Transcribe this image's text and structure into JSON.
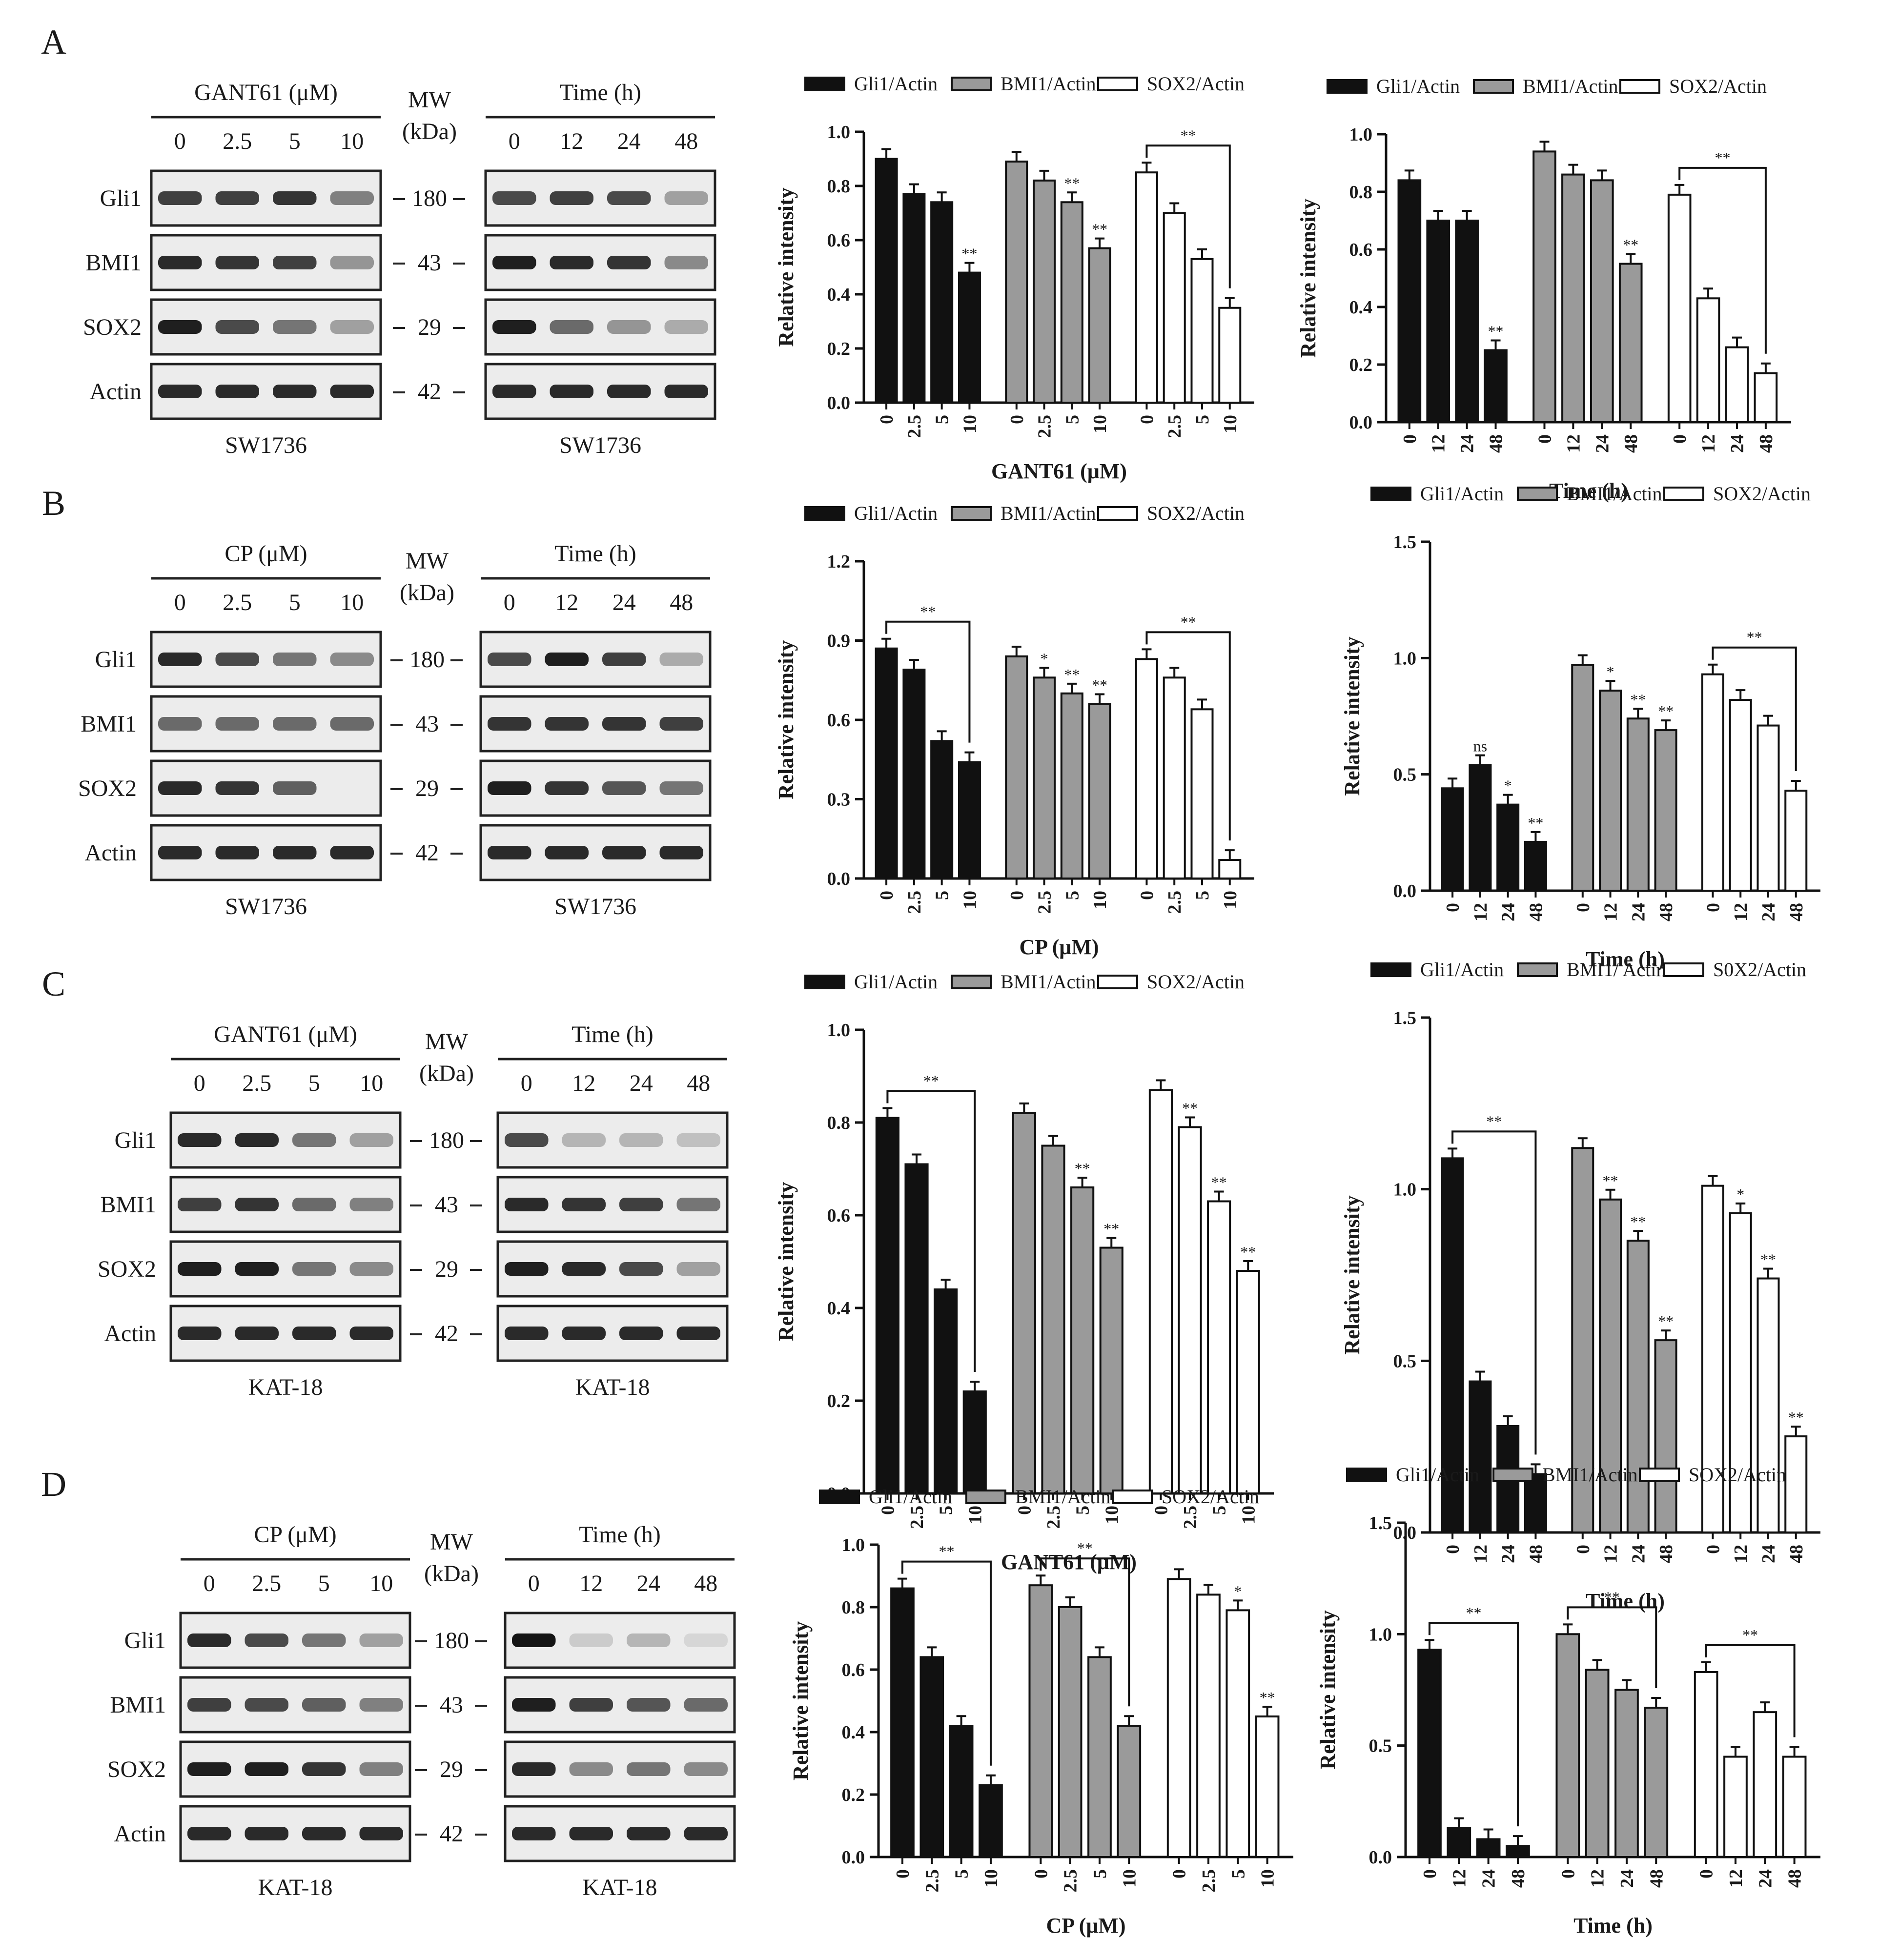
{
  "figure": {
    "panels": [
      {
        "letter": "A",
        "blots": [
          {
            "header": "GANT61 (μM)",
            "lanes": [
              "0",
              "2.5",
              "5",
              "10"
            ],
            "cell": "SW1736",
            "dose": true
          },
          {
            "header": "Time (h)",
            "lanes": [
              "0",
              "12",
              "24",
              "48"
            ],
            "cell": "SW1736",
            "dose": false
          }
        ],
        "mw_header": [
          "MW",
          "(kDa)"
        ],
        "proteins": [
          "Gli1",
          "BMI1",
          "SOX2",
          "Actin"
        ],
        "mw_values": [
          "180",
          "43",
          "29",
          "42"
        ]
      },
      {
        "letter": "B",
        "blots": [
          {
            "header": "CP (μM)",
            "lanes": [
              "0",
              "2.5",
              "5",
              "10"
            ],
            "cell": "SW1736",
            "dose": true
          },
          {
            "header": "Time (h)",
            "lanes": [
              "0",
              "12",
              "24",
              "48"
            ],
            "cell": "SW1736",
            "dose": false
          }
        ],
        "mw_header": [
          "MW",
          "(kDa)"
        ],
        "proteins": [
          "Gli1",
          "BMI1",
          "SOX2",
          "Actin"
        ],
        "mw_values": [
          "180",
          "43",
          "29",
          "42"
        ]
      },
      {
        "letter": "C",
        "blots": [
          {
            "header": "GANT61 (μM)",
            "lanes": [
              "0",
              "2.5",
              "5",
              "10"
            ],
            "cell": "KAT-18",
            "dose": true
          },
          {
            "header": "Time (h)",
            "lanes": [
              "0",
              "12",
              "24",
              "48"
            ],
            "cell": "KAT-18",
            "dose": false
          }
        ],
        "mw_header": [
          "MW",
          "(kDa)"
        ],
        "proteins": [
          "Gli1",
          "BMI1",
          "SOX2",
          "Actin"
        ],
        "mw_values": [
          "180",
          "43",
          "29",
          "42"
        ]
      },
      {
        "letter": "D",
        "blots": [
          {
            "header": "CP (μM)",
            "lanes": [
              "0",
              "2.5",
              "5",
              "10"
            ],
            "cell": "KAT-18",
            "dose": true
          },
          {
            "header": "Time (h)",
            "lanes": [
              "0",
              "12",
              "24",
              "48"
            ],
            "cell": "KAT-18",
            "dose": false
          }
        ],
        "mw_header": [
          "MW",
          "(kDa)"
        ],
        "proteins": [
          "Gli1",
          "BMI1",
          "SOX2",
          "Actin"
        ],
        "mw_values": [
          "180",
          "43",
          "29",
          "42"
        ]
      }
    ]
  },
  "colors": {
    "gli1": "#111111",
    "bmi1": "#9a9a9a",
    "sox2": "#ffffff",
    "stroke": "#111111"
  },
  "chart_data": [
    {
      "type": "bar",
      "panel": "A",
      "position": "dose",
      "ylabel": "Relative intensity",
      "xlabel": "GANT61 (μM)",
      "ylim": [
        0,
        1.0
      ],
      "yticks": [
        "0.0",
        "0.2",
        "0.4",
        "0.6",
        "0.8",
        "1.0"
      ],
      "categories": [
        "0",
        "2.5",
        "5",
        "10"
      ],
      "legend": [
        "Gli1/Actin",
        "BMI1/Actin",
        "SOX2/Actin"
      ],
      "series": [
        {
          "name": "Gli1/Actin",
          "values": [
            0.9,
            0.77,
            0.74,
            0.48
          ],
          "stars": [
            "",
            "",
            "",
            "**"
          ]
        },
        {
          "name": "BMI1/Actin",
          "values": [
            0.89,
            0.82,
            0.74,
            0.57
          ],
          "stars": [
            "",
            "",
            "**",
            "**"
          ]
        },
        {
          "name": "SOX2/Actin",
          "values": [
            0.85,
            0.7,
            0.53,
            0.35
          ],
          "stars": [
            "",
            "",
            "",
            ""
          ]
        }
      ],
      "brackets": [
        {
          "series": 2,
          "from": 0,
          "to": 3,
          "label": "**"
        }
      ]
    },
    {
      "type": "bar",
      "panel": "A",
      "position": "time",
      "ylabel": "Relative intensity",
      "xlabel": "Time (h)",
      "ylim": [
        0,
        1.0
      ],
      "yticks": [
        "0.0",
        "0.2",
        "0.4",
        "0.6",
        "0.8",
        "1.0"
      ],
      "categories": [
        "0",
        "12",
        "24",
        "48"
      ],
      "legend": [
        "Gli1/Actin",
        "BMI1/Actin",
        "SOX2/Actin"
      ],
      "series": [
        {
          "name": "Gli1/Actin",
          "values": [
            0.84,
            0.7,
            0.7,
            0.25
          ],
          "stars": [
            "",
            "",
            "",
            "**"
          ]
        },
        {
          "name": "BMI1/Actin",
          "values": [
            0.94,
            0.86,
            0.84,
            0.55
          ],
          "stars": [
            "",
            "",
            "",
            "**"
          ]
        },
        {
          "name": "SOX2/Actin",
          "values": [
            0.79,
            0.43,
            0.26,
            0.17
          ],
          "stars": [
            "",
            "",
            "",
            ""
          ]
        }
      ],
      "brackets": [
        {
          "series": 2,
          "from": 0,
          "to": 3,
          "label": "**"
        }
      ]
    },
    {
      "type": "bar",
      "panel": "B",
      "position": "dose",
      "ylabel": "Relative  intensity",
      "xlabel": "CP (μM)",
      "ylim": [
        0,
        1.2
      ],
      "yticks": [
        "0.0",
        "0.3",
        "0.6",
        "0.9",
        "1.2"
      ],
      "categories": [
        "0",
        "2.5",
        "5",
        "10"
      ],
      "legend": [
        "Gli1/Actin",
        "BMI1/Actin",
        "SOX2/Actin"
      ],
      "series": [
        {
          "name": "Gli1/Actin",
          "values": [
            0.87,
            0.79,
            0.52,
            0.44
          ],
          "stars": [
            "",
            "",
            "",
            ""
          ]
        },
        {
          "name": "BMI1/Actin",
          "values": [
            0.84,
            0.76,
            0.7,
            0.66
          ],
          "stars": [
            "",
            "*",
            "**",
            "**"
          ]
        },
        {
          "name": "SOX2/Actin",
          "values": [
            0.83,
            0.76,
            0.64,
            0.07
          ],
          "stars": [
            "",
            "",
            "",
            ""
          ]
        }
      ],
      "brackets": [
        {
          "series": 0,
          "from": 0,
          "to": 3,
          "label": "**"
        },
        {
          "series": 2,
          "from": 0,
          "to": 3,
          "label": "**"
        }
      ]
    },
    {
      "type": "bar",
      "panel": "B",
      "position": "time",
      "ylabel": "Relative intensity",
      "xlabel": "Time (h)",
      "ylim": [
        0,
        1.5
      ],
      "yticks": [
        "0.0",
        "0.5",
        "1.0",
        "1.5"
      ],
      "categories": [
        "0",
        "12",
        "24",
        "48"
      ],
      "legend": [
        "Gli1/Actin",
        "BMI1/Actin",
        "SOX2/Actin"
      ],
      "series": [
        {
          "name": "Gli1/Actin",
          "values": [
            0.44,
            0.54,
            0.37,
            0.21
          ],
          "stars": [
            "",
            "ns",
            "*",
            "**"
          ]
        },
        {
          "name": "BMI1/Actin",
          "values": [
            0.97,
            0.86,
            0.74,
            0.69
          ],
          "stars": [
            "",
            "*",
            "**",
            "**"
          ]
        },
        {
          "name": "SOX2/Actin",
          "values": [
            0.93,
            0.82,
            0.71,
            0.43
          ],
          "stars": [
            "",
            "",
            "",
            ""
          ]
        }
      ],
      "brackets": [
        {
          "series": 2,
          "from": 0,
          "to": 3,
          "label": "**"
        }
      ]
    },
    {
      "type": "bar",
      "panel": "C",
      "position": "dose",
      "ylabel": "Relative intensity",
      "xlabel": "GANT61 (μM)",
      "ylim": [
        0,
        1.0
      ],
      "yticks": [
        "0.0",
        "0.2",
        "0.4",
        "0.6",
        "0.8",
        "1.0"
      ],
      "categories": [
        "0",
        "2.5",
        "5",
        "10"
      ],
      "legend": [
        "Gli1/Actin",
        "BMI1/Actin",
        "SOX2/Actin"
      ],
      "series": [
        {
          "name": "Gli1/Actin",
          "values": [
            0.81,
            0.71,
            0.44,
            0.22
          ],
          "stars": [
            "",
            "",
            "",
            ""
          ]
        },
        {
          "name": "BMI1/Actin",
          "values": [
            0.82,
            0.75,
            0.66,
            0.53
          ],
          "stars": [
            "",
            "",
            "**",
            "**"
          ]
        },
        {
          "name": "SOX2/Actin",
          "values": [
            0.87,
            0.79,
            0.63,
            0.48
          ],
          "stars": [
            "",
            "**",
            "**",
            "**"
          ]
        }
      ],
      "brackets": [
        {
          "series": 0,
          "from": 0,
          "to": 3,
          "label": "**"
        }
      ]
    },
    {
      "type": "bar",
      "panel": "C",
      "position": "time",
      "ylabel": "Relative intensity",
      "xlabel": "Time (h)",
      "ylim": [
        0,
        1.5
      ],
      "yticks": [
        "0.0",
        "0.5",
        "1.0",
        "1.5"
      ],
      "categories": [
        "0",
        "12",
        "24",
        "48"
      ],
      "legend": [
        "Gli1/Actin",
        "BMI1/ Actin",
        "S0X2/Actin"
      ],
      "series": [
        {
          "name": "Gli1/Actin",
          "values": [
            1.09,
            0.44,
            0.31,
            0.17
          ],
          "stars": [
            "",
            "",
            "",
            ""
          ]
        },
        {
          "name": "BMI1/Actin",
          "values": [
            1.12,
            0.97,
            0.85,
            0.56
          ],
          "stars": [
            "",
            "**",
            "**",
            "**"
          ]
        },
        {
          "name": "SOX2/Actin",
          "values": [
            1.01,
            0.93,
            0.74,
            0.28
          ],
          "stars": [
            "",
            "*",
            "**",
            "**"
          ]
        }
      ],
      "brackets": [
        {
          "series": 0,
          "from": 0,
          "to": 3,
          "label": "**"
        }
      ]
    },
    {
      "type": "bar",
      "panel": "D",
      "position": "dose",
      "ylabel": "Relative intensity",
      "xlabel": "CP (μM)",
      "ylim": [
        0,
        1.0
      ],
      "yticks": [
        "0.0",
        "0.2",
        "0.4",
        "0.6",
        "0.8",
        "1.0"
      ],
      "categories": [
        "0",
        "2.5",
        "5",
        "10"
      ],
      "legend": [
        "Gli1/Actin",
        "BMI1/Actin",
        "SOX2/Actin"
      ],
      "series": [
        {
          "name": "Gli1/Actin",
          "values": [
            0.86,
            0.64,
            0.42,
            0.23
          ],
          "stars": [
            "",
            "",
            "",
            ""
          ]
        },
        {
          "name": "BMI1/Actin",
          "values": [
            0.87,
            0.8,
            0.64,
            0.42
          ],
          "stars": [
            "",
            "",
            "",
            ""
          ]
        },
        {
          "name": "SOX2/Actin",
          "values": [
            0.89,
            0.84,
            0.79,
            0.45
          ],
          "stars": [
            "",
            "",
            "*",
            "**"
          ]
        }
      ],
      "brackets": [
        {
          "series": 0,
          "from": 0,
          "to": 3,
          "label": "**"
        },
        {
          "series": 1,
          "from": 0,
          "to": 3,
          "label": "**"
        }
      ]
    },
    {
      "type": "bar",
      "panel": "D",
      "position": "time",
      "ylabel": "Relative intensity",
      "xlabel": "Time (h)",
      "ylim": [
        0,
        1.5
      ],
      "yticks": [
        "0.0",
        "0.5",
        "1.0",
        "1.5"
      ],
      "categories": [
        "0",
        "12",
        "24",
        "48"
      ],
      "legend": [
        "Gli1/Actin",
        "BMI1/Actin",
        "SOX2/Actin"
      ],
      "series": [
        {
          "name": "Gli1/Actin",
          "values": [
            0.93,
            0.13,
            0.08,
            0.05
          ],
          "stars": [
            "",
            "",
            "",
            ""
          ]
        },
        {
          "name": "BMI1/Actin",
          "values": [
            1.0,
            0.84,
            0.75,
            0.67
          ],
          "stars": [
            "",
            "",
            "",
            ""
          ]
        },
        {
          "name": "SOX2/Actin",
          "values": [
            0.83,
            0.45,
            0.65,
            0.45
          ],
          "stars": [
            "",
            "",
            "",
            ""
          ]
        }
      ],
      "brackets": [
        {
          "series": 0,
          "from": 0,
          "to": 3,
          "label": "**"
        },
        {
          "series": 1,
          "from": 0,
          "to": 3,
          "label": "**"
        },
        {
          "series": 2,
          "from": 0,
          "to": 3,
          "label": "**"
        }
      ]
    }
  ]
}
